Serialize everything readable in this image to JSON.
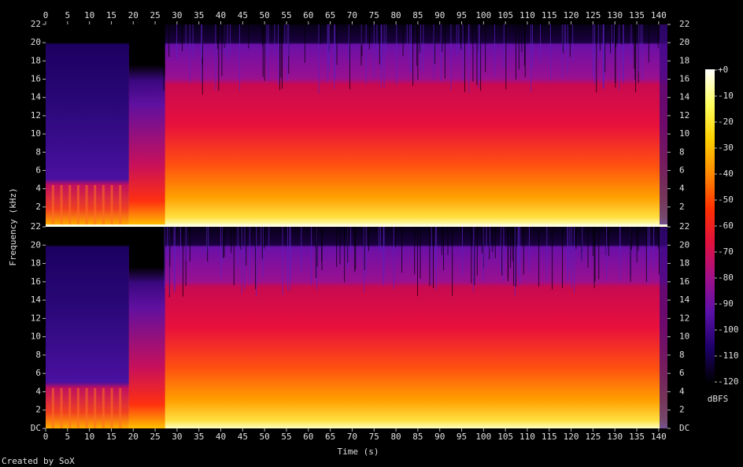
{
  "chart_data": {
    "type": "spectrogram",
    "xlabel": "Time (s)",
    "ylabel": "Frequency (kHz)",
    "footer": "Created by SoX",
    "xlim": [
      0,
      142
    ],
    "xticks": [
      0,
      5,
      10,
      15,
      20,
      25,
      30,
      35,
      40,
      45,
      50,
      55,
      60,
      65,
      70,
      75,
      80,
      85,
      90,
      95,
      100,
      105,
      110,
      115,
      120,
      125,
      130,
      135,
      140
    ],
    "panels": [
      {
        "ylim": [
          0,
          22
        ],
        "yticks": [
          2,
          4,
          6,
          8,
          10,
          12,
          14,
          16,
          18,
          20,
          22
        ]
      },
      {
        "ylim": [
          0,
          22
        ],
        "yticks": [
          {
            "value": 0,
            "label": "DC"
          },
          2,
          4,
          6,
          8,
          10,
          12,
          14,
          16,
          18,
          20,
          22
        ]
      }
    ],
    "colorbar": {
      "label": "dBFS",
      "lim": [
        -120,
        0
      ],
      "ticks": [
        {
          "value": 0,
          "label": "+0"
        },
        -10,
        -20,
        -30,
        -40,
        -50,
        -60,
        -70,
        -80,
        -90,
        -100,
        -110,
        -120
      ],
      "colors": [
        "#000000",
        "#1c0068",
        "#5a10a8",
        "#a0108c",
        "#e01040",
        "#ff3000",
        "#ff8a00",
        "#ffd000",
        "#ffff60",
        "#ffffff"
      ]
    }
  }
}
